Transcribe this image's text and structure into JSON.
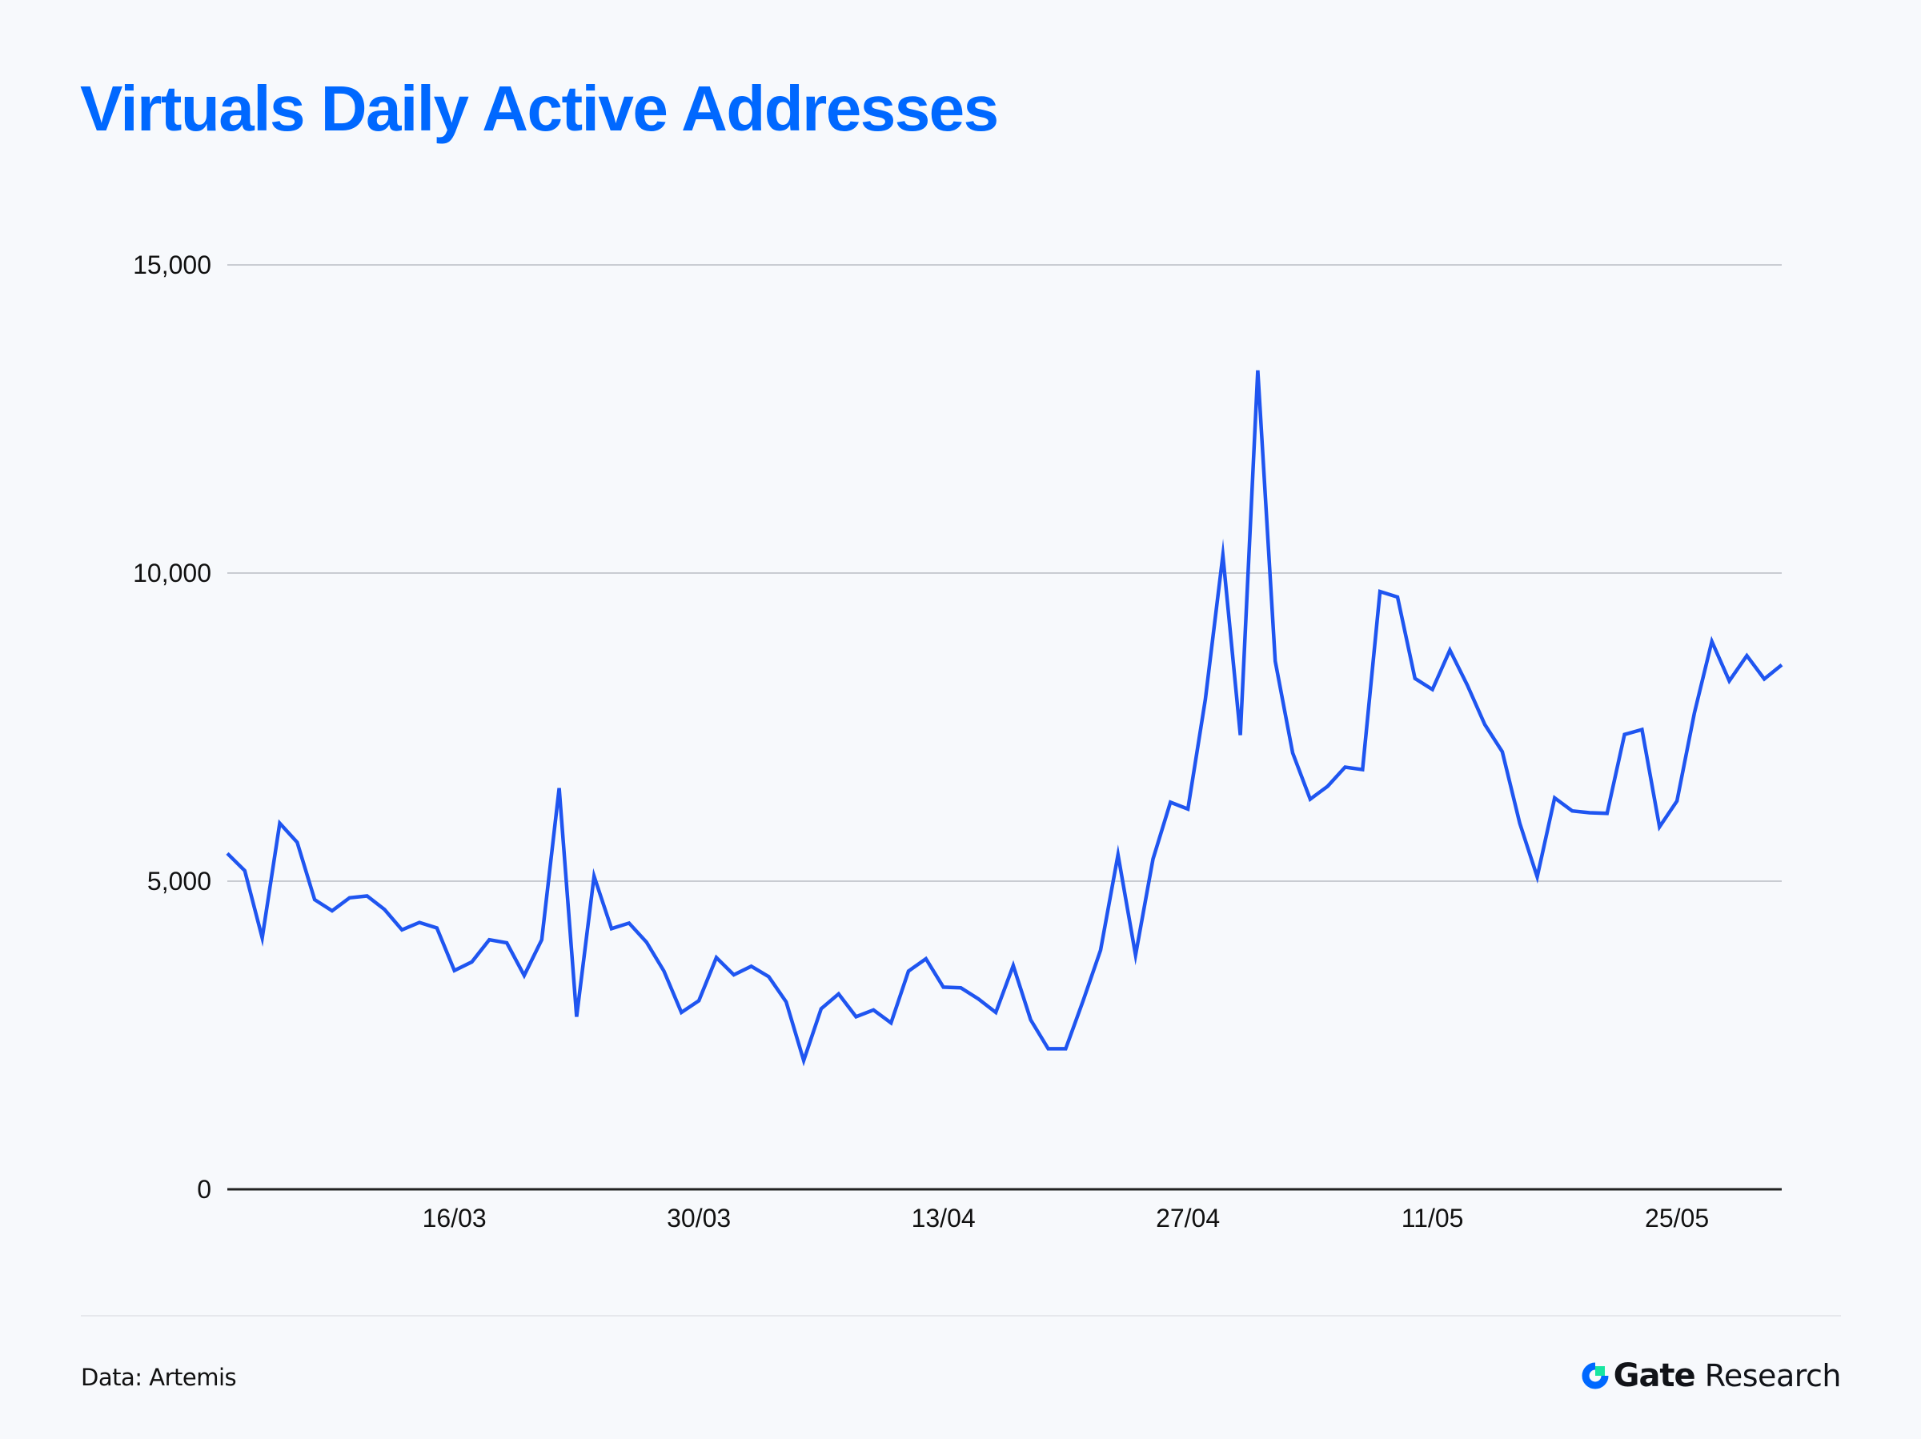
{
  "title": "Virtuals Daily Active Addresses",
  "footer": {
    "source": "Data: Artemis",
    "brand_bold": "Gate",
    "brand_regular": "Research",
    "brand_colors": {
      "ring": "#0068FF",
      "square": "#17E6A1"
    }
  },
  "colors": {
    "title": "#0068FF",
    "line": "#1F55F0",
    "grid": "#C9CCD2",
    "axis": "#222222",
    "background": "#F7F9FC"
  },
  "chart_data": {
    "type": "line",
    "title": "Virtuals Daily Active Addresses",
    "xlabel": "",
    "ylabel": "",
    "ylim": [
      0,
      15000
    ],
    "yticks": [
      0,
      5000,
      10000,
      15000
    ],
    "ytick_labels": [
      "0",
      "5,000",
      "10,000",
      "15,000"
    ],
    "x_start": "03/03",
    "x_end": "31/05",
    "xticks": [
      {
        "index": 13,
        "label": "16/03"
      },
      {
        "index": 27,
        "label": "30/03"
      },
      {
        "index": 41,
        "label": "13/04"
      },
      {
        "index": 55,
        "label": "27/04"
      },
      {
        "index": 69,
        "label": "11/05"
      },
      {
        "index": 83,
        "label": "25/05"
      }
    ],
    "grid": true,
    "legend": "none",
    "series": [
      {
        "name": "Daily Active Addresses",
        "values": [
          5450,
          5170,
          4080,
          5940,
          5630,
          4700,
          4520,
          4730,
          4760,
          4540,
          4210,
          4330,
          4240,
          3550,
          3690,
          4050,
          4000,
          3470,
          4050,
          6510,
          2800,
          5080,
          4230,
          4320,
          4010,
          3540,
          2870,
          3060,
          3760,
          3480,
          3620,
          3450,
          3040,
          2090,
          2930,
          3170,
          2800,
          2910,
          2700,
          3540,
          3740,
          3280,
          3270,
          3090,
          2870,
          3630,
          2750,
          2280,
          2280,
          3060,
          3880,
          5430,
          3800,
          5360,
          6280,
          6170,
          7950,
          10290,
          7370,
          13290,
          8570,
          7080,
          6330,
          6540,
          6850,
          6810,
          9700,
          9610,
          8290,
          8110,
          8750,
          8180,
          7540,
          7100,
          5940,
          5070,
          6350,
          6140,
          6110,
          6100,
          7380,
          7460,
          5880,
          6300,
          7730,
          8890,
          8250,
          8660,
          8280,
          8510
        ]
      }
    ]
  }
}
